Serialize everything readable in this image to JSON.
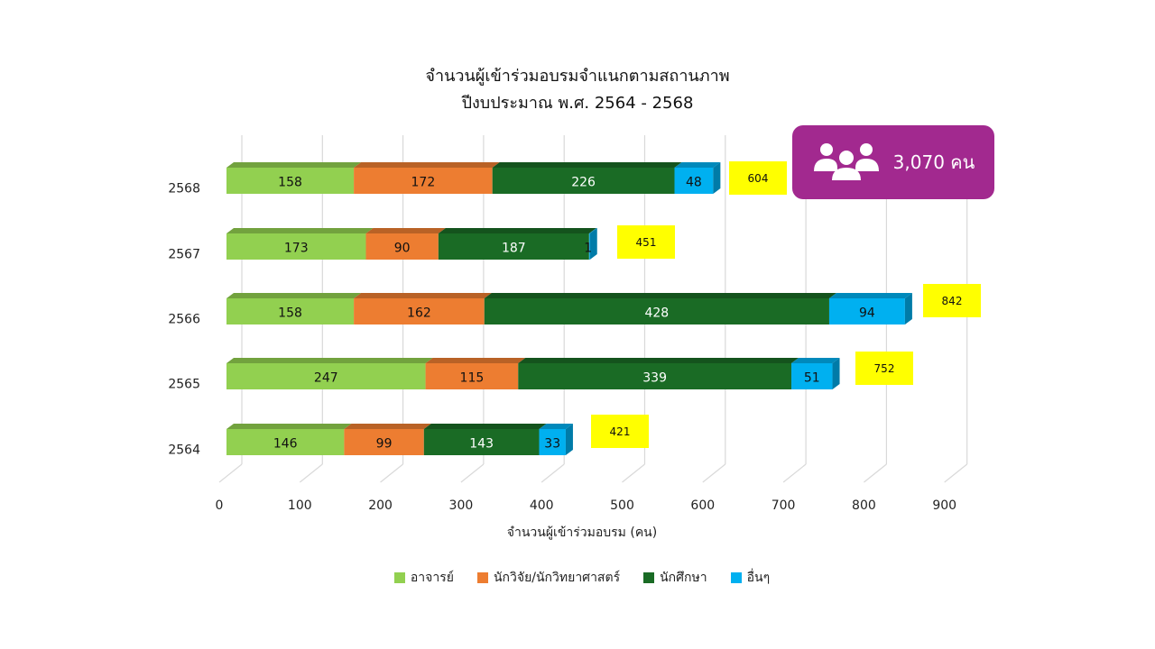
{
  "chart_data": {
    "type": "bar",
    "orientation": "horizontal",
    "stacked": true,
    "style": "3d",
    "title": [
      "จำนวนผู้เข้าร่วมอบรมจำแนกตามสถานภาพ",
      "ปีงบประมาณ พ.ศ. 2564 - 2568"
    ],
    "xlabel": "จำนวนผู้เข้าร่วมอบรม (คน)",
    "ylabel": "",
    "xlim": [
      0,
      900
    ],
    "xticks": [
      0,
      100,
      200,
      300,
      400,
      500,
      600,
      700,
      800,
      900
    ],
    "grid": true,
    "legend_position": "bottom",
    "categories": [
      "2568",
      "2567",
      "2566",
      "2565",
      "2564"
    ],
    "series": [
      {
        "name": "อาจารย์",
        "color": "#92d050",
        "values": [
          158,
          173,
          158,
          247,
          146
        ]
      },
      {
        "name": "นักวิจัย/นักวิทยาศาสตร์",
        "color": "#ed7d31",
        "values": [
          172,
          90,
          162,
          115,
          99
        ]
      },
      {
        "name": "นักศึกษา",
        "color": "#1a6b25",
        "values": [
          226,
          187,
          428,
          339,
          143
        ]
      },
      {
        "name": "อื่นๆ",
        "color": "#00b0f0",
        "values": [
          48,
          1,
          94,
          51,
          33
        ]
      }
    ],
    "totals": [
      604,
      451,
      842,
      752,
      421
    ],
    "total_box_color": "#ffff00"
  },
  "badge": {
    "icon": "people-group-icon",
    "text": "3,070 คน",
    "color": "#a2298f"
  }
}
